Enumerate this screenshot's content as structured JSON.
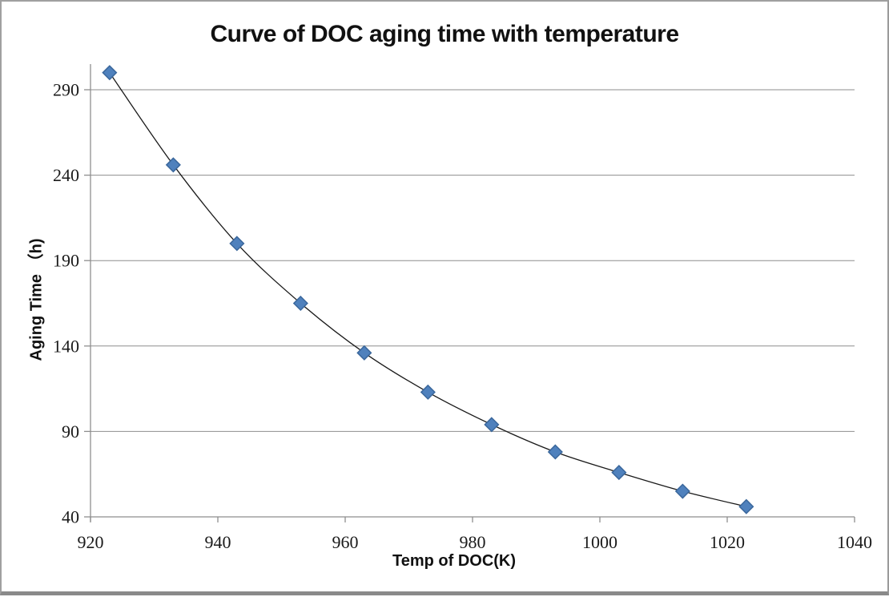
{
  "title": "Curve of DOC aging time with temperature",
  "chart_data": {
    "type": "scatter",
    "title": "Curve of DOC aging time with temperature",
    "xlabel": "Temp of DOC(K)",
    "ylabel": "Aging Time （h)",
    "xlim": [
      920,
      1040
    ],
    "ylim": [
      40,
      305
    ],
    "x_ticks": [
      920,
      940,
      960,
      980,
      1000,
      1020,
      1040
    ],
    "y_ticks": [
      40,
      90,
      140,
      190,
      240,
      290
    ],
    "grid": "horizontal",
    "legend": "none",
    "series": [
      {
        "name": "DOC aging time",
        "x": [
          923,
          933,
          943,
          953,
          963,
          973,
          983,
          993,
          1003,
          1013,
          1023
        ],
        "y": [
          300,
          246,
          200,
          165,
          136,
          113,
          94,
          78,
          66,
          55,
          46
        ],
        "marker": "diamond",
        "smooth_line": true
      }
    ],
    "colors": {
      "marker_fill": "#4F81BD",
      "marker_stroke": "#3A679C",
      "line": "#1a1a1a",
      "gridline": "#8e8e8e",
      "axis": "#8e8e8e",
      "tick_label": "#1a1a1a"
    }
  }
}
